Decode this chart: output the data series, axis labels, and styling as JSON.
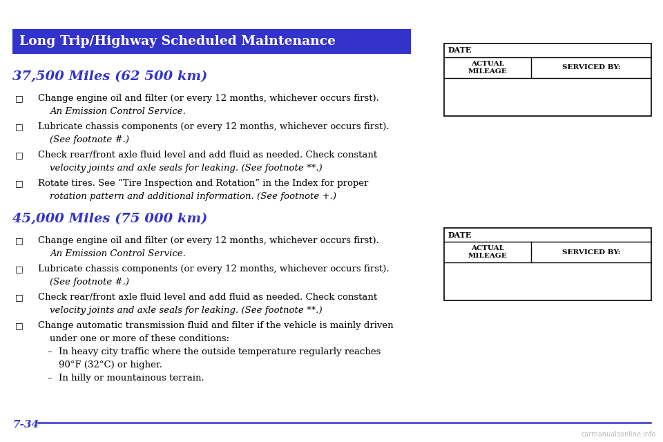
{
  "title": "Long Trip/Highway Scheduled Maintenance",
  "title_bg": "#3333CC",
  "title_fg": "#FFFFFF",
  "page_bg": "#FFFFFF",
  "section1_heading": "37,500 Miles (62 500 km)",
  "section2_heading": "45,000 Miles (75 000 km)",
  "heading_color": "#3333CC",
  "body_color": "#000000",
  "section1_items": [
    [
      "Change engine oil and filter (or every 12 months, whichever occurs first).",
      "An Emission Control Service.",
      true
    ],
    [
      "Lubricate chassis components (or every 12 months, whichever occurs first).",
      "(See footnote #.)",
      true
    ],
    [
      "Check rear/front axle fluid level and add fluid as needed. Check constant",
      "velocity joints and axle seals for leaking. (See footnote **.)",
      true
    ],
    [
      "Rotate tires. See “Tire Inspection and Rotation” in the Index for proper",
      "rotation pattern and additional information. (See footnote +.)",
      true
    ]
  ],
  "section2_items": [
    [
      "Change engine oil and filter (or every 12 months, whichever occurs first).",
      "An Emission Control Service.",
      true
    ],
    [
      "Lubricate chassis components (or every 12 months, whichever occurs first).",
      "(See footnote #.)",
      true
    ],
    [
      "Check rear/front axle fluid level and add fluid as needed. Check constant",
      "velocity joints and axle seals for leaking. (See footnote **.)",
      true
    ],
    [
      "Change automatic transmission fluid and filter if the vehicle is mainly driven",
      "under one or more of these conditions:",
      false
    ]
  ],
  "section2_subitems": [
    [
      "In heavy city traffic where the outside temperature regularly reaches",
      "90°F (32°C) or higher."
    ],
    [
      "In hilly or mountainous terrain.",
      ""
    ]
  ],
  "footer_text": "7-34",
  "footer_color": "#3333CC",
  "line_color": "#3333CC",
  "watermark": "carmanualsonline.info"
}
